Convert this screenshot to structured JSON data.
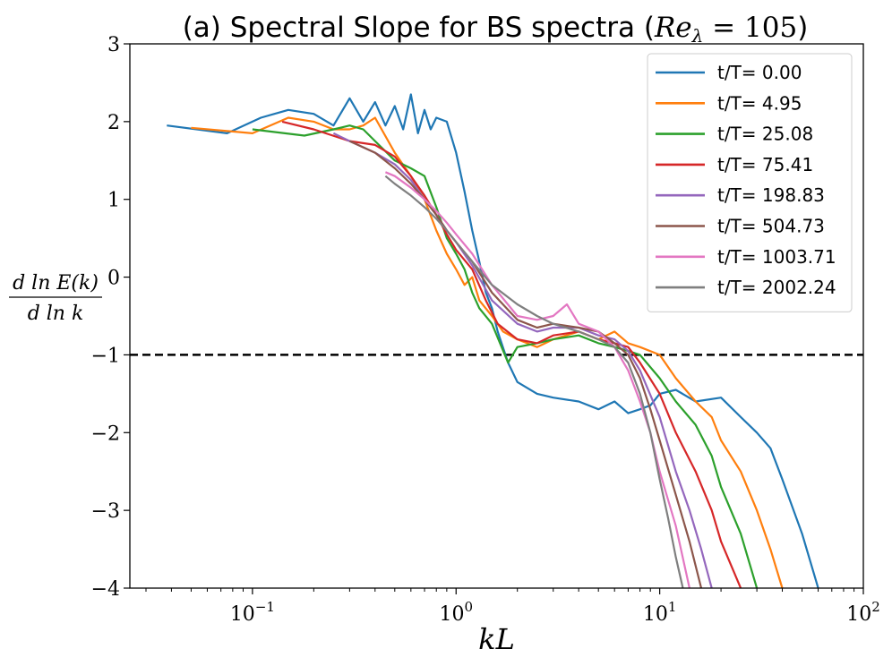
{
  "chart_data": {
    "type": "line",
    "title": "(a) Spectral Slope for BS spectra (Re_λ = 105)",
    "xlabel": "kL",
    "ylabel": "d ln E(k) / d ln k",
    "xscale": "log",
    "xlim": [
      0.025,
      100
    ],
    "ylim": [
      -4,
      3
    ],
    "x_ticks": [
      {
        "value": 0.1,
        "label": "10^-1"
      },
      {
        "value": 1,
        "label": "10^0"
      },
      {
        "value": 10,
        "label": "10^1"
      },
      {
        "value": 100,
        "label": "10^2"
      }
    ],
    "y_ticks": [
      {
        "value": 3,
        "label": "3"
      },
      {
        "value": 2,
        "label": "2"
      },
      {
        "value": 1,
        "label": "1"
      },
      {
        "value": 0,
        "label": "0"
      },
      {
        "value": -1,
        "label": "−1"
      },
      {
        "value": -2,
        "label": "−2"
      },
      {
        "value": -3,
        "label": "−3"
      },
      {
        "value": -4,
        "label": "−4"
      }
    ],
    "reference_line": {
      "y": -1,
      "style": "dashed",
      "color": "#000000"
    },
    "legend_position": "top-right",
    "series": [
      {
        "name": "t/T= 0.00",
        "color": "#1f77b4",
        "x": [
          0.038,
          0.075,
          0.11,
          0.15,
          0.2,
          0.25,
          0.3,
          0.35,
          0.4,
          0.45,
          0.5,
          0.55,
          0.6,
          0.65,
          0.7,
          0.75,
          0.8,
          0.9,
          1.0,
          1.1,
          1.2,
          1.3,
          1.4,
          1.5,
          1.6,
          1.8,
          2.0,
          2.5,
          3,
          4,
          5,
          6,
          7,
          8,
          9,
          10,
          12,
          15,
          20,
          25,
          30,
          35,
          40,
          50,
          60
        ],
        "y": [
          1.95,
          1.85,
          2.05,
          2.15,
          2.1,
          1.95,
          2.3,
          2.0,
          2.25,
          1.95,
          2.2,
          1.9,
          2.35,
          1.85,
          2.15,
          1.9,
          2.05,
          2.0,
          1.6,
          1.1,
          0.6,
          0.2,
          -0.2,
          -0.4,
          -0.7,
          -1.1,
          -1.35,
          -1.5,
          -1.55,
          -1.6,
          -1.7,
          -1.6,
          -1.75,
          -1.7,
          -1.65,
          -1.5,
          -1.45,
          -1.6,
          -1.55,
          -1.8,
          -2.0,
          -2.2,
          -2.6,
          -3.3,
          -4.0
        ]
      },
      {
        "name": "t/T= 4.95",
        "color": "#ff7f0e",
        "x": [
          0.05,
          0.1,
          0.15,
          0.2,
          0.25,
          0.3,
          0.35,
          0.4,
          0.5,
          0.6,
          0.7,
          0.8,
          0.9,
          1.0,
          1.1,
          1.2,
          1.3,
          1.5,
          1.7,
          2.0,
          2.5,
          3,
          4,
          5,
          6,
          7,
          8,
          10,
          12,
          15,
          18,
          20,
          25,
          30,
          35,
          40
        ],
        "y": [
          1.92,
          1.85,
          2.05,
          2.0,
          1.9,
          1.9,
          1.95,
          2.05,
          1.6,
          1.3,
          1.0,
          0.6,
          0.3,
          0.1,
          -0.1,
          0.0,
          -0.3,
          -0.5,
          -0.7,
          -0.8,
          -0.9,
          -0.8,
          -0.7,
          -0.8,
          -0.7,
          -0.85,
          -0.9,
          -1.0,
          -1.3,
          -1.6,
          -1.8,
          -2.1,
          -2.5,
          -3.0,
          -3.5,
          -4.0
        ]
      },
      {
        "name": "t/T= 25.08",
        "color": "#2ca02c",
        "x": [
          0.1,
          0.18,
          0.25,
          0.3,
          0.35,
          0.4,
          0.5,
          0.6,
          0.7,
          0.8,
          0.9,
          1.0,
          1.1,
          1.2,
          1.3,
          1.5,
          1.8,
          2.0,
          2.5,
          3,
          4,
          5,
          6,
          7,
          8,
          10,
          12,
          15,
          18,
          20,
          25,
          30
        ],
        "y": [
          1.9,
          1.82,
          1.9,
          1.95,
          1.9,
          1.75,
          1.5,
          1.4,
          1.3,
          0.9,
          0.5,
          0.3,
          0.1,
          -0.2,
          -0.4,
          -0.6,
          -1.1,
          -0.9,
          -0.85,
          -0.8,
          -0.75,
          -0.85,
          -0.9,
          -0.95,
          -1.0,
          -1.3,
          -1.6,
          -1.9,
          -2.3,
          -2.7,
          -3.3,
          -4.0
        ]
      },
      {
        "name": "t/T= 75.41",
        "color": "#d62728",
        "x": [
          0.14,
          0.2,
          0.3,
          0.4,
          0.5,
          0.6,
          0.7,
          0.8,
          0.9,
          1.0,
          1.2,
          1.4,
          1.6,
          2.0,
          2.5,
          3,
          4,
          5,
          6,
          7,
          8,
          10,
          12,
          15,
          18,
          20,
          25
        ],
        "y": [
          2.0,
          1.9,
          1.75,
          1.7,
          1.55,
          1.3,
          1.05,
          0.8,
          0.55,
          0.35,
          0.1,
          -0.3,
          -0.6,
          -0.8,
          -0.85,
          -0.75,
          -0.7,
          -0.8,
          -0.85,
          -0.9,
          -1.1,
          -1.5,
          -2.0,
          -2.5,
          -3.0,
          -3.4,
          -4.0
        ]
      },
      {
        "name": "t/T= 198.83",
        "color": "#9467bd",
        "x": [
          0.25,
          0.3,
          0.4,
          0.5,
          0.6,
          0.7,
          0.8,
          0.9,
          1.0,
          1.2,
          1.5,
          2.0,
          2.5,
          3,
          4,
          5,
          6,
          7,
          8,
          10,
          12,
          14,
          16,
          18
        ],
        "y": [
          1.85,
          1.75,
          1.6,
          1.45,
          1.25,
          1.0,
          0.8,
          0.6,
          0.45,
          0.15,
          -0.3,
          -0.6,
          -0.7,
          -0.65,
          -0.65,
          -0.75,
          -0.8,
          -0.95,
          -1.2,
          -1.8,
          -2.5,
          -3.0,
          -3.5,
          -4.0
        ]
      },
      {
        "name": "t/T= 504.73",
        "color": "#8c564b",
        "x": [
          0.3,
          0.4,
          0.5,
          0.6,
          0.7,
          0.8,
          0.9,
          1.0,
          1.2,
          1.5,
          2.0,
          2.5,
          3,
          4,
          5,
          6,
          7,
          8,
          9,
          10,
          12,
          14,
          16
        ],
        "y": [
          1.75,
          1.6,
          1.4,
          1.2,
          1.0,
          0.8,
          0.6,
          0.45,
          0.2,
          -0.2,
          -0.55,
          -0.65,
          -0.6,
          -0.65,
          -0.7,
          -0.85,
          -1.0,
          -1.3,
          -1.7,
          -2.1,
          -2.8,
          -3.4,
          -4.0
        ]
      },
      {
        "name": "t/T= 1003.71",
        "color": "#e377c2",
        "x": [
          0.45,
          0.5,
          0.6,
          0.7,
          0.8,
          0.9,
          1.0,
          1.2,
          1.5,
          2.0,
          2.5,
          3,
          3.5,
          4,
          5,
          6,
          7,
          8,
          9,
          10,
          12,
          14
        ],
        "y": [
          1.35,
          1.3,
          1.15,
          1.0,
          0.85,
          0.7,
          0.55,
          0.3,
          -0.1,
          -0.5,
          -0.55,
          -0.5,
          -0.35,
          -0.6,
          -0.7,
          -0.9,
          -1.2,
          -1.6,
          -2.0,
          -2.5,
          -3.2,
          -4.0
        ]
      },
      {
        "name": "t/T= 2002.24",
        "color": "#7f7f7f",
        "x": [
          0.45,
          0.5,
          0.6,
          0.7,
          0.8,
          0.9,
          1.0,
          1.2,
          1.5,
          2.0,
          2.5,
          3,
          4,
          5,
          6,
          7,
          8,
          9,
          10,
          11,
          12,
          13
        ],
        "y": [
          1.3,
          1.2,
          1.05,
          0.9,
          0.75,
          0.6,
          0.45,
          0.2,
          -0.1,
          -0.35,
          -0.5,
          -0.6,
          -0.7,
          -0.8,
          -0.9,
          -1.1,
          -1.5,
          -2.0,
          -2.6,
          -3.1,
          -3.6,
          -4.0
        ]
      }
    ]
  }
}
